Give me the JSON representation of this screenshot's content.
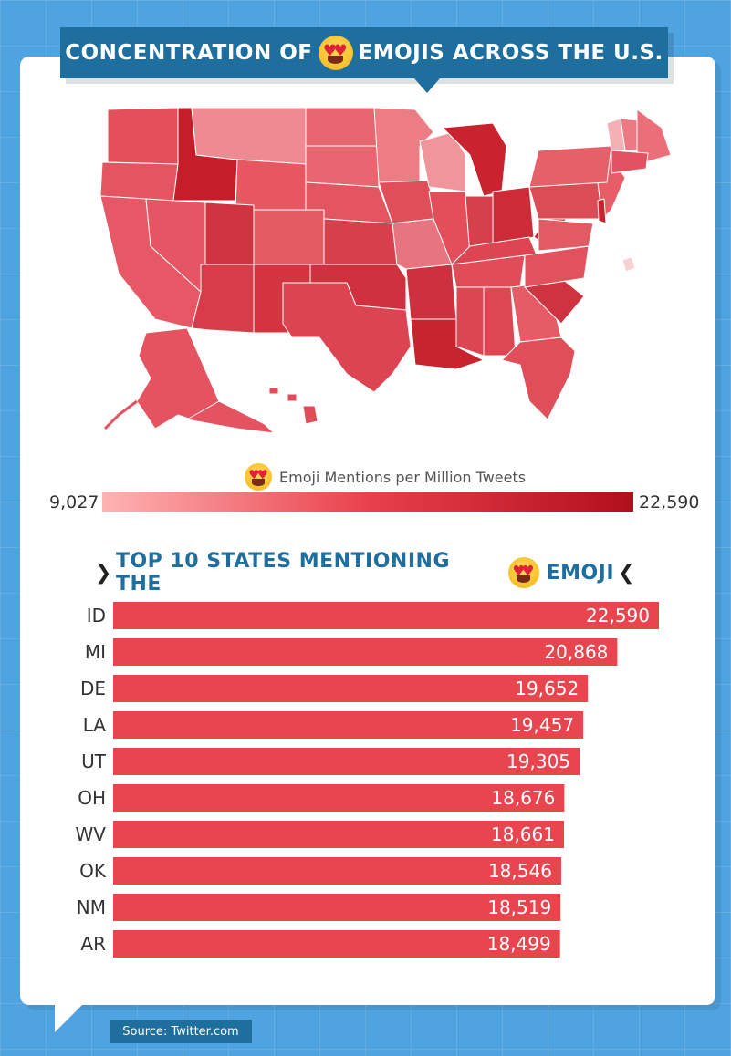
{
  "header": {
    "title_left": "CONCENTRATION OF",
    "title_right": "EMOJIS ACROSS THE U.S.",
    "emoji_icon": "heart-eyes-emoji"
  },
  "map_legend": {
    "label": "Emoji Mentions per Million Tweets",
    "min": "9,027",
    "max": "22,590",
    "color_low": "#ffb3b3",
    "color_mid": "#e9414c",
    "color_high": "#b10e1c"
  },
  "chart_title": {
    "left_chevron": "❯",
    "text_left": "TOP 10 STATES MENTIONING THE",
    "text_right": "EMOJI",
    "right_chevron": "❮"
  },
  "chart_data": {
    "type": "bar",
    "orientation": "horizontal",
    "categories": [
      "ID",
      "MI",
      "DE",
      "LA",
      "UT",
      "OH",
      "WV",
      "OK",
      "NM",
      "AR"
    ],
    "values": [
      22590,
      20868,
      19652,
      19457,
      19305,
      18676,
      18661,
      18546,
      18519,
      18499
    ],
    "value_labels": [
      "22,590",
      "20,868",
      "19,652",
      "19,457",
      "19,305",
      "18,676",
      "18,661",
      "18,546",
      "18,519",
      "18,499"
    ],
    "bar_color": "#e9454e"
  },
  "footer": {
    "source": "Source: Twitter.com"
  },
  "colors": {
    "background": "#4fa3e0",
    "banner": "#1e6f9e",
    "map_base": "#e25560"
  }
}
